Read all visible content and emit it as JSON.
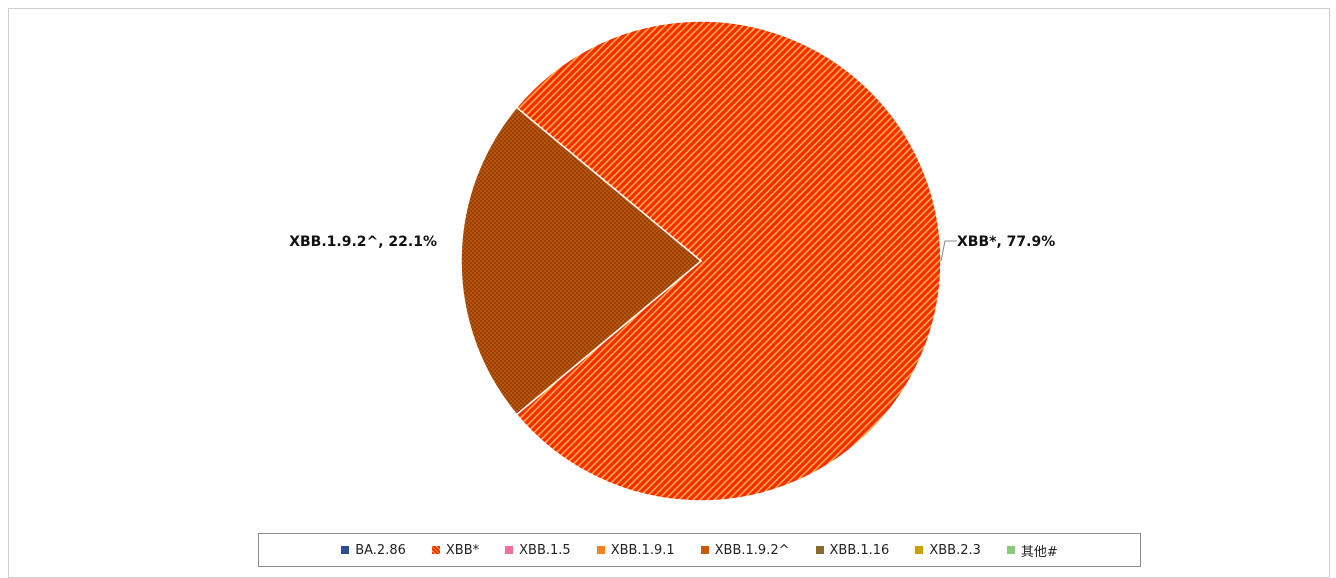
{
  "chart_data": {
    "type": "pie",
    "title": "",
    "legend_position": "bottom",
    "legend": [
      {
        "name": "BA.2.86",
        "color": "#2f4e8f",
        "pattern": "solid"
      },
      {
        "name": "XBB*",
        "color": "#ff2a00",
        "pattern": "diagonal-stripes"
      },
      {
        "name": "XBB.1.5",
        "color": "#f06e9c",
        "pattern": "solid"
      },
      {
        "name": "XBB.1.9.1",
        "color": "#f5821f",
        "pattern": "solid"
      },
      {
        "name": "XBB.1.9.2^",
        "color": "#c45a0c",
        "pattern": "crosshatch"
      },
      {
        "name": "XBB.1.16",
        "color": "#8a6a2c",
        "pattern": "solid"
      },
      {
        "name": "XBB.2.3",
        "color": "#c9a200",
        "pattern": "solid"
      },
      {
        "name": "其他#",
        "color": "#8cc97a",
        "pattern": "solid"
      }
    ],
    "slices": [
      {
        "name": "XBB*",
        "value": 77.9,
        "label": "XBB*, 77.9%",
        "color": "#ff2a00",
        "pattern": "diagonal-stripes"
      },
      {
        "name": "XBB.1.9.2^",
        "value": 22.1,
        "label": "XBB.1.9.2^, 22.1%",
        "color": "#c45a0c",
        "pattern": "crosshatch"
      }
    ]
  }
}
